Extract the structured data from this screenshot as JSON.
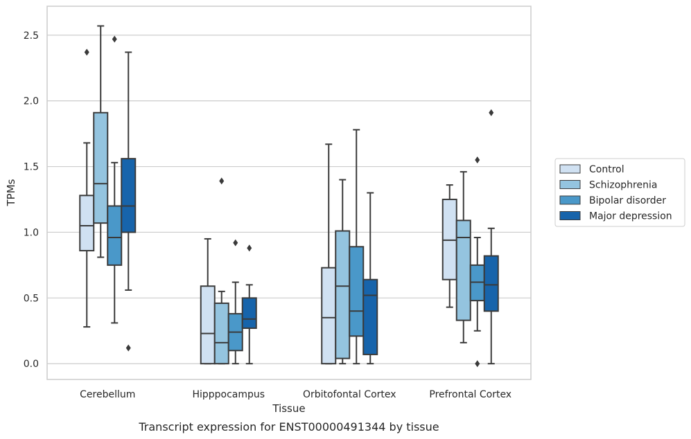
{
  "chart_data": {
    "type": "box",
    "xlabel": "Tissue",
    "ylabel": "TPMs",
    "caption": "Transcript expression for ENST00000491344 by tissue",
    "ylim": [
      -0.12,
      2.72
    ],
    "yticks": [
      0.0,
      0.5,
      1.0,
      1.5,
      2.0,
      2.5
    ],
    "ytick_labels": [
      "0.0",
      "0.5",
      "1.0",
      "1.5",
      "2.0",
      "2.5"
    ],
    "grid": true,
    "legend_position": "right",
    "categories": [
      "Cerebellum",
      "Hipppocampus",
      "Orbitofontal Cortex",
      "Prefrontal Cortex"
    ],
    "series": [
      {
        "name": "Control",
        "color": "#d0e1f2",
        "boxes": [
          {
            "whisker_low": 0.28,
            "q1": 0.86,
            "median": 1.05,
            "q3": 1.28,
            "whisker_high": 1.68,
            "outliers": [
              2.37
            ]
          },
          {
            "whisker_low": 0.0,
            "q1": 0.0,
            "median": 0.23,
            "q3": 0.59,
            "whisker_high": 0.95,
            "outliers": []
          },
          {
            "whisker_low": 0.0,
            "q1": 0.0,
            "median": 0.35,
            "q3": 0.73,
            "whisker_high": 1.67,
            "outliers": []
          },
          {
            "whisker_low": 0.43,
            "q1": 0.64,
            "median": 0.94,
            "q3": 1.25,
            "whisker_high": 1.36,
            "outliers": []
          }
        ]
      },
      {
        "name": "Schizophrenia",
        "color": "#94c4df",
        "boxes": [
          {
            "whisker_low": 0.81,
            "q1": 1.07,
            "median": 1.37,
            "q3": 1.91,
            "whisker_high": 2.57,
            "outliers": []
          },
          {
            "whisker_low": 0.0,
            "q1": 0.0,
            "median": 0.16,
            "q3": 0.46,
            "whisker_high": 0.55,
            "outliers": [
              1.39
            ]
          },
          {
            "whisker_low": 0.0,
            "q1": 0.04,
            "median": 0.59,
            "q3": 1.01,
            "whisker_high": 1.4,
            "outliers": []
          },
          {
            "whisker_low": 0.16,
            "q1": 0.33,
            "median": 0.96,
            "q3": 1.09,
            "whisker_high": 1.46,
            "outliers": []
          }
        ]
      },
      {
        "name": "Bipolar disorder",
        "color": "#4a98c9",
        "boxes": [
          {
            "whisker_low": 0.31,
            "q1": 0.75,
            "median": 0.96,
            "q3": 1.2,
            "whisker_high": 1.53,
            "outliers": [
              2.47
            ]
          },
          {
            "whisker_low": 0.0,
            "q1": 0.1,
            "median": 0.24,
            "q3": 0.38,
            "whisker_high": 0.62,
            "outliers": [
              0.92
            ]
          },
          {
            "whisker_low": 0.0,
            "q1": 0.21,
            "median": 0.4,
            "q3": 0.89,
            "whisker_high": 1.78,
            "outliers": []
          },
          {
            "whisker_low": 0.25,
            "q1": 0.48,
            "median": 0.62,
            "q3": 0.75,
            "whisker_high": 0.96,
            "outliers": [
              1.55,
              0.0
            ]
          }
        ]
      },
      {
        "name": "Major depression",
        "color": "#1764ab",
        "boxes": [
          {
            "whisker_low": 0.56,
            "q1": 1.0,
            "median": 1.2,
            "q3": 1.56,
            "whisker_high": 2.37,
            "outliers": [
              0.12
            ]
          },
          {
            "whisker_low": 0.0,
            "q1": 0.27,
            "median": 0.34,
            "q3": 0.5,
            "whisker_high": 0.6,
            "outliers": [
              0.88
            ]
          },
          {
            "whisker_low": 0.0,
            "q1": 0.07,
            "median": 0.52,
            "q3": 0.64,
            "whisker_high": 1.3,
            "outliers": []
          },
          {
            "whisker_low": 0.0,
            "q1": 0.4,
            "median": 0.6,
            "q3": 0.82,
            "whisker_high": 1.03,
            "outliers": [
              1.91
            ]
          }
        ]
      }
    ]
  }
}
